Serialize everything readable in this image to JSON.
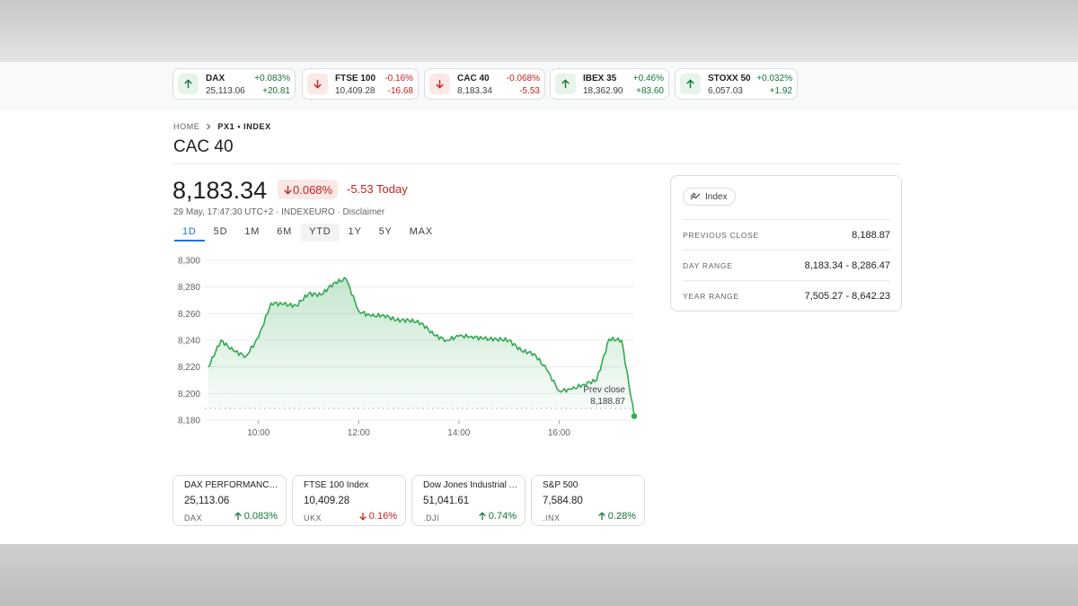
{
  "tickers": [
    {
      "name": "DAX",
      "value": "25,113.06",
      "pct": "+0.083%",
      "change": "+20.81",
      "direction": "up"
    },
    {
      "name": "FTSE 100",
      "value": "10,409.28",
      "pct": "-0.16%",
      "change": "-16.68",
      "direction": "down"
    },
    {
      "name": "CAC 40",
      "value": "8,183.34",
      "pct": "-0.068%",
      "change": "-5.53",
      "direction": "down"
    },
    {
      "name": "IBEX 35",
      "value": "18,362.90",
      "pct": "+0.46%",
      "change": "+83.60",
      "direction": "up"
    },
    {
      "name": "STOXX 50",
      "value": "6,057.03",
      "pct": "+0.032%",
      "change": "+1.92",
      "direction": "up"
    }
  ],
  "breadcrumb": {
    "home": "HOME",
    "current": "PX1 • INDEX"
  },
  "page_title": "CAC 40",
  "quote": {
    "price": "8,183.34",
    "pct_change": "0.068%",
    "change_today": "-5.53 Today",
    "meta": "29 May, 17:47:30 UTC+2 · INDEXEURO · Disclaimer"
  },
  "range_tabs": [
    "1D",
    "5D",
    "1M",
    "6M",
    "YTD",
    "1Y",
    "5Y",
    "MAX"
  ],
  "active_range": "1D",
  "colors": {
    "positive": "#137333",
    "negative": "#c5221f",
    "line": "#34a853",
    "accent": "#1a73e8"
  },
  "info_card": {
    "chip_label": "Index",
    "chip_icon": "trend-icon",
    "rows": [
      {
        "label": "PREVIOUS CLOSE",
        "value": "8,188.87"
      },
      {
        "label": "DAY RANGE",
        "value": "8,183.34 - 8,286.47"
      },
      {
        "label": "YEAR RANGE",
        "value": "7,505.27 - 8,642.23"
      }
    ]
  },
  "compare_cards": [
    {
      "name": "DAX PERFORMANCE-INDEX",
      "value": "25,113.06",
      "symbol": "DAX",
      "change": "0.083%",
      "direction": "up"
    },
    {
      "name": "FTSE 100 Index",
      "value": "10,409.28",
      "symbol": "UKX",
      "change": "0.16%",
      "direction": "down"
    },
    {
      "name": "Dow Jones Industrial Average",
      "value": "51,041.61",
      "symbol": ".DJI",
      "change": "0.74%",
      "direction": "up"
    },
    {
      "name": "S&P 500",
      "value": "7,584.80",
      "symbol": ".INX",
      "change": "0.28%",
      "direction": "up"
    }
  ],
  "chart_data": {
    "type": "area",
    "x_tick_labels": [
      "10:00",
      "12:00",
      "14:00",
      "16:00"
    ],
    "y_tick_labels": [
      "8,300",
      "8,280",
      "8,260",
      "8,240",
      "8,220",
      "8,200",
      "8,180"
    ],
    "ylim": [
      8180,
      8300
    ],
    "xlim": [
      "09:00",
      "17:30"
    ],
    "reference_line": {
      "label": "Prev close",
      "value_label": "8,188.87",
      "value": 8188.87
    },
    "grid": true,
    "series": [
      {
        "x": [
          "09:00",
          "09:15",
          "09:30",
          "09:45",
          "10:00",
          "10:15",
          "10:30",
          "10:45",
          "11:00",
          "11:15",
          "11:30",
          "11:45",
          "12:00",
          "12:15",
          "12:30",
          "12:45",
          "13:00",
          "13:15",
          "13:30",
          "13:45",
          "14:00",
          "14:15",
          "14:30",
          "14:45",
          "15:00",
          "15:15",
          "15:30",
          "15:45",
          "16:00",
          "16:15",
          "16:30",
          "16:45",
          "17:00",
          "17:15",
          "17:30"
        ],
        "values": [
          8220,
          8240,
          8232,
          8228,
          8242,
          8268,
          8267,
          8266,
          8275,
          8274,
          8283,
          8286,
          8262,
          8258,
          8259,
          8255,
          8255,
          8253,
          8244,
          8240,
          8243,
          8243,
          8241,
          8241,
          8240,
          8232,
          8230,
          8218,
          8202,
          8203,
          8207,
          8210,
          8241,
          8240,
          8183
        ]
      }
    ]
  }
}
